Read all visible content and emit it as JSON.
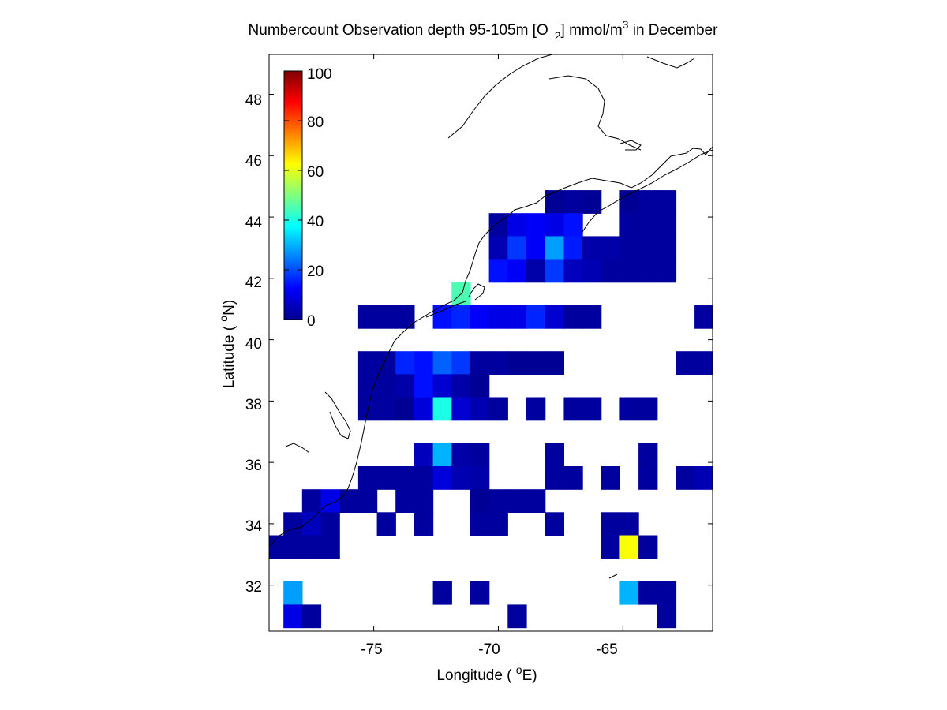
{
  "title": {
    "main": "Numbercount Observation depth 95-105m [O",
    "sub": "2",
    "mid": "] mmol/m",
    "sup": "3",
    "end": " in December"
  },
  "xlabel": {
    "pre": "Longitude ( ",
    "sup": "o",
    "post": "E)"
  },
  "ylabel": {
    "pre": "Latitude ( ",
    "sup": "o",
    "post": "N)"
  },
  "xticks": [
    "-75",
    "-70",
    "-65"
  ],
  "yticks": [
    "32",
    "34",
    "36",
    "38",
    "40",
    "42",
    "44",
    "46",
    "48"
  ],
  "colorbar_ticks": [
    "0",
    "20",
    "40",
    "60",
    "80",
    "100"
  ],
  "chart_data": {
    "type": "heatmap",
    "colormap": "jet",
    "clim": [
      0,
      100
    ],
    "xlim": [
      -79.2,
      -61.4
    ],
    "ylim": [
      30.5,
      49.3
    ],
    "cell_size_deg": 0.75,
    "value_name": "observation count",
    "cells": [
      [
        -66.25,
        44.5,
        2
      ],
      [
        -67,
        44.5,
        3
      ],
      [
        -67.75,
        44.5,
        2
      ],
      [
        -64.75,
        44.5,
        2
      ],
      [
        -64,
        44.5,
        3
      ],
      [
        -63.25,
        44.5,
        3
      ],
      [
        -70,
        43.75,
        3
      ],
      [
        -69.25,
        43.75,
        10
      ],
      [
        -68.5,
        43.75,
        12
      ],
      [
        -67.75,
        43.75,
        10
      ],
      [
        -67,
        43.75,
        14
      ],
      [
        -64.75,
        43.75,
        3
      ],
      [
        -64,
        43.75,
        3
      ],
      [
        -63.25,
        43.75,
        3
      ],
      [
        -70,
        43,
        5
      ],
      [
        -69.25,
        43,
        18
      ],
      [
        -68.5,
        43,
        12
      ],
      [
        -67.75,
        43,
        28
      ],
      [
        -67,
        43,
        15
      ],
      [
        -66.25,
        43,
        4
      ],
      [
        -65.5,
        43,
        4
      ],
      [
        -64.75,
        43,
        3
      ],
      [
        -64,
        43,
        3
      ],
      [
        -63.25,
        43,
        3
      ],
      [
        -71.5,
        41.5,
        45
      ],
      [
        -70,
        42.25,
        14
      ],
      [
        -69.25,
        42.25,
        12
      ],
      [
        -68.5,
        42.25,
        4
      ],
      [
        -67.75,
        42.25,
        18
      ],
      [
        -67,
        42.25,
        6
      ],
      [
        -66.25,
        42.25,
        5
      ],
      [
        -65.5,
        42.25,
        3
      ],
      [
        -64.75,
        42.25,
        3
      ],
      [
        -64,
        42.25,
        3
      ],
      [
        -63.25,
        42.25,
        3
      ],
      [
        -75.25,
        40.75,
        3
      ],
      [
        -74.5,
        40.75,
        3
      ],
      [
        -73.75,
        40.75,
        3
      ],
      [
        -72.25,
        40.75,
        14
      ],
      [
        -71.5,
        40.75,
        16
      ],
      [
        -70.75,
        40.75,
        12
      ],
      [
        -70,
        40.75,
        10
      ],
      [
        -69.25,
        40.75,
        10
      ],
      [
        -68.5,
        40.75,
        16
      ],
      [
        -67.75,
        40.75,
        8
      ],
      [
        -67,
        40.75,
        3
      ],
      [
        -66.25,
        40.75,
        3
      ],
      [
        -61.75,
        40.75,
        3
      ],
      [
        -75.25,
        39.25,
        3
      ],
      [
        -74.5,
        39.25,
        3
      ],
      [
        -73.75,
        39.25,
        16
      ],
      [
        -73,
        39.25,
        14
      ],
      [
        -72.25,
        39.25,
        22
      ],
      [
        -71.5,
        39.25,
        18
      ],
      [
        -70.75,
        39.25,
        3
      ],
      [
        -70,
        39.25,
        3
      ],
      [
        -69.25,
        39.25,
        2
      ],
      [
        -68.5,
        39.25,
        2
      ],
      [
        -67.75,
        39.25,
        2
      ],
      [
        -62.5,
        39.25,
        3
      ],
      [
        -61.75,
        39.25,
        3
      ],
      [
        -75.25,
        38.5,
        3
      ],
      [
        -74.5,
        38.5,
        3
      ],
      [
        -73.75,
        38.5,
        4
      ],
      [
        -73,
        38.5,
        14
      ],
      [
        -72.25,
        38.5,
        8
      ],
      [
        -71.5,
        38.5,
        4
      ],
      [
        -70.75,
        38.5,
        2
      ],
      [
        -75.25,
        37.75,
        3
      ],
      [
        -74.5,
        37.75,
        3
      ],
      [
        -73.75,
        37.75,
        2
      ],
      [
        -73,
        37.75,
        9
      ],
      [
        -72.25,
        37.75,
        40
      ],
      [
        -71.5,
        37.75,
        8
      ],
      [
        -70.75,
        37.75,
        5
      ],
      [
        -70,
        37.75,
        3
      ],
      [
        -68.5,
        37.75,
        3
      ],
      [
        -67,
        37.75,
        3
      ],
      [
        -66.25,
        37.75,
        3
      ],
      [
        -64.75,
        37.75,
        3
      ],
      [
        -64,
        37.75,
        3
      ],
      [
        -73,
        36.25,
        6
      ],
      [
        -72.25,
        36.25,
        30
      ],
      [
        -71.5,
        36.25,
        4
      ],
      [
        -70.75,
        36.25,
        3
      ],
      [
        -67.75,
        36.25,
        3
      ],
      [
        -64,
        36.25,
        3
      ],
      [
        -75.25,
        35.5,
        3
      ],
      [
        -74.5,
        35.5,
        3
      ],
      [
        -73.75,
        35.5,
        3
      ],
      [
        -73,
        35.5,
        3
      ],
      [
        -72.25,
        35.5,
        9
      ],
      [
        -71.5,
        35.5,
        5
      ],
      [
        -70.75,
        35.5,
        4
      ],
      [
        -67.75,
        35.5,
        3
      ],
      [
        -67,
        35.5,
        3
      ],
      [
        -65.5,
        35.5,
        3
      ],
      [
        -64,
        35.5,
        3
      ],
      [
        -62.5,
        35.5,
        3
      ],
      [
        -61.75,
        35.5,
        5
      ],
      [
        -77.5,
        34.75,
        3
      ],
      [
        -76.75,
        34.75,
        10
      ],
      [
        -76,
        34.75,
        3
      ],
      [
        -75.25,
        34.75,
        3
      ],
      [
        -73.75,
        34.75,
        3
      ],
      [
        -73,
        34.75,
        3
      ],
      [
        -70.75,
        34.75,
        2
      ],
      [
        -70,
        34.75,
        3
      ],
      [
        -69.25,
        34.75,
        3
      ],
      [
        -68.5,
        34.75,
        3
      ],
      [
        -78.25,
        34,
        3
      ],
      [
        -77.5,
        34,
        6
      ],
      [
        -76.75,
        34,
        3
      ],
      [
        -74.5,
        34,
        3
      ],
      [
        -73,
        34,
        3
      ],
      [
        -70.75,
        34,
        3
      ],
      [
        -70,
        34,
        3
      ],
      [
        -67.75,
        34,
        3
      ],
      [
        -65.5,
        34,
        3
      ],
      [
        -64.75,
        34,
        3
      ],
      [
        -79,
        33.25,
        3
      ],
      [
        -78.25,
        33.25,
        3
      ],
      [
        -77.5,
        33.25,
        3
      ],
      [
        -76.75,
        33.25,
        3
      ],
      [
        -65.5,
        33.25,
        3
      ],
      [
        -64.75,
        33.25,
        62
      ],
      [
        -64,
        33.25,
        3
      ],
      [
        -78.25,
        31.75,
        28
      ],
      [
        -72.25,
        31.75,
        3
      ],
      [
        -70.75,
        31.75,
        3
      ],
      [
        -64.75,
        31.75,
        30
      ],
      [
        -64,
        31.75,
        3
      ],
      [
        -63.25,
        31.75,
        3
      ],
      [
        -78.25,
        30.99,
        10
      ],
      [
        -77.5,
        30.99,
        3
      ],
      [
        -69.25,
        30.99,
        3
      ],
      [
        -63.25,
        30.99,
        3
      ]
    ]
  }
}
